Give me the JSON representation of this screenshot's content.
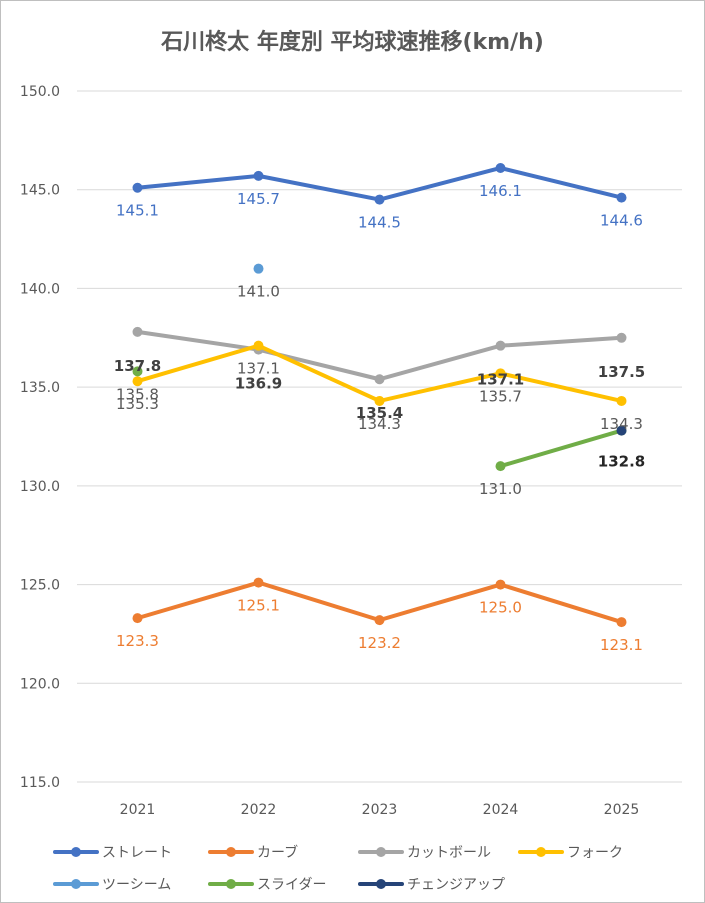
{
  "chart_data": {
    "type": "line",
    "title": "石川柊太 年度別 平均球速推移(km/h)",
    "categories": [
      "2021",
      "2022",
      "2023",
      "2024",
      "2025"
    ],
    "ylim": [
      115.0,
      150.0
    ],
    "yticks": [
      "115.0",
      "120.0",
      "125.0",
      "130.0",
      "135.0",
      "140.0",
      "145.0",
      "150.0"
    ],
    "grid": true,
    "legend_position": "bottom",
    "series": [
      {
        "name": "ストレート",
        "color": "#4472c4",
        "values": [
          145.1,
          145.7,
          144.5,
          146.1,
          144.6
        ],
        "labels": [
          "145.1",
          "145.7",
          "144.5",
          "146.1",
          "144.6"
        ],
        "label_color": "#4472c4"
      },
      {
        "name": "カーブ",
        "color": "#ed7d31",
        "values": [
          123.3,
          125.1,
          123.2,
          125.0,
          123.1
        ],
        "labels": [
          "123.3",
          "125.1",
          "123.2",
          "125.0",
          "123.1"
        ],
        "label_color": "#ed7d31"
      },
      {
        "name": "カットボール",
        "color": "#a5a5a5",
        "values": [
          137.8,
          136.9,
          135.4,
          137.1,
          137.5
        ],
        "labels": [
          "137.8",
          "136.9",
          "135.4",
          "137.1",
          "137.5"
        ],
        "label_color": "#404040",
        "label_bold": true
      },
      {
        "name": "フォーク",
        "color": "#ffc000",
        "values": [
          135.3,
          137.1,
          134.3,
          135.7,
          134.3
        ],
        "labels": [
          "135.3",
          "137.1",
          "134.3",
          "135.7",
          "134.3"
        ],
        "label_color": "#595959"
      },
      {
        "name": "ツーシーム",
        "color": "#5b9bd5",
        "values": [
          null,
          141.0,
          null,
          null,
          null
        ],
        "labels": [
          "",
          "141.0",
          "",
          "",
          ""
        ],
        "label_color": "#595959"
      },
      {
        "name": "スライダー",
        "color": "#70ad47",
        "values": [
          135.8,
          null,
          null,
          131.0,
          132.8
        ],
        "labels": [
          "135.8",
          "",
          "",
          "131.0",
          ""
        ],
        "label_color": "#595959"
      },
      {
        "name": "チェンジアップ",
        "color": "#264478",
        "values": [
          null,
          null,
          null,
          null,
          132.8
        ],
        "labels": [
          "",
          "",
          "",
          "",
          "132.8"
        ],
        "label_color": "#262626",
        "label_bold": true
      }
    ]
  }
}
